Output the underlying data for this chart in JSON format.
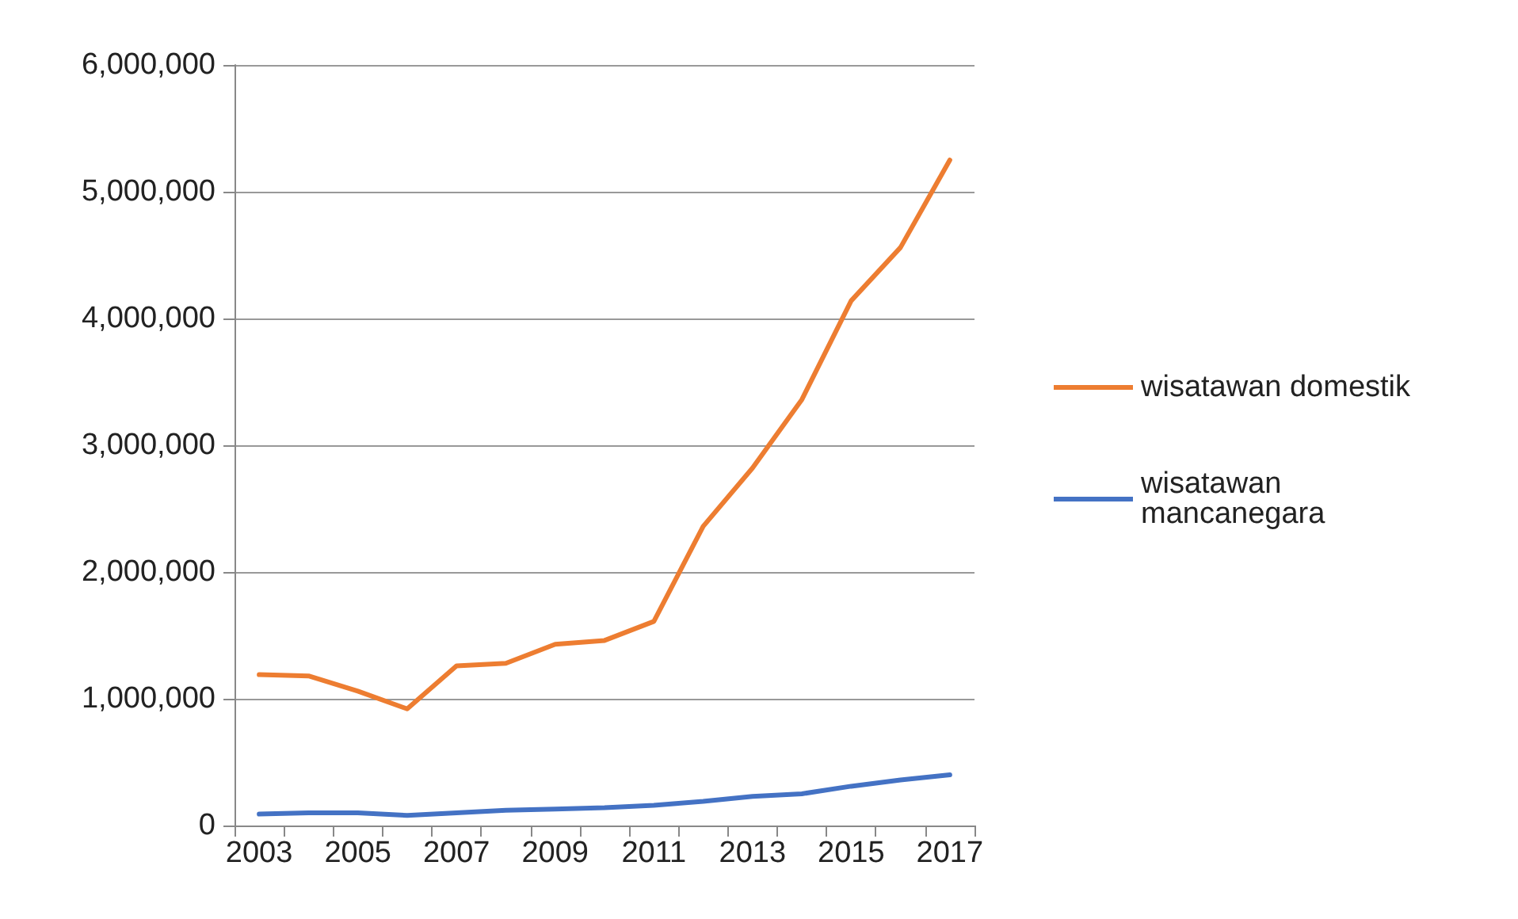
{
  "chart_data": {
    "type": "line",
    "categories": [
      "2003",
      null,
      "2005",
      null,
      "2007",
      null,
      "2009",
      null,
      "2011",
      null,
      "2013",
      null,
      "2015",
      null,
      "2017"
    ],
    "series": [
      {
        "name": "wisatawan domestik",
        "color": "#ed7d31",
        "values": [
          1190000,
          1180000,
          1060000,
          920000,
          1260000,
          1280000,
          1430000,
          1460000,
          1610000,
          2360000,
          2820000,
          3360000,
          4140000,
          4560000,
          5250000
        ]
      },
      {
        "name": "wisatawan mancanegara",
        "color": "#4472c4",
        "values": [
          90000,
          100000,
          100000,
          80000,
          100000,
          120000,
          130000,
          140000,
          160000,
          190000,
          230000,
          250000,
          310000,
          360000,
          400000
        ]
      }
    ],
    "ylim": [
      0,
      6000000
    ],
    "yticks": [
      0,
      {
        "value": 1000000,
        "label": "1,000,000"
      },
      {
        "value": 2000000,
        "label": "2,000,000"
      },
      {
        "value": 3000000,
        "label": "3,000,000"
      },
      {
        "value": 4000000,
        "label": "4,000,000"
      },
      {
        "value": 5000000,
        "label": "5,000,000"
      },
      {
        "value": 6000000,
        "label": "6,000,000"
      }
    ],
    "grid": "y",
    "legend": "right",
    "marker": "none",
    "line_style": "solid"
  }
}
